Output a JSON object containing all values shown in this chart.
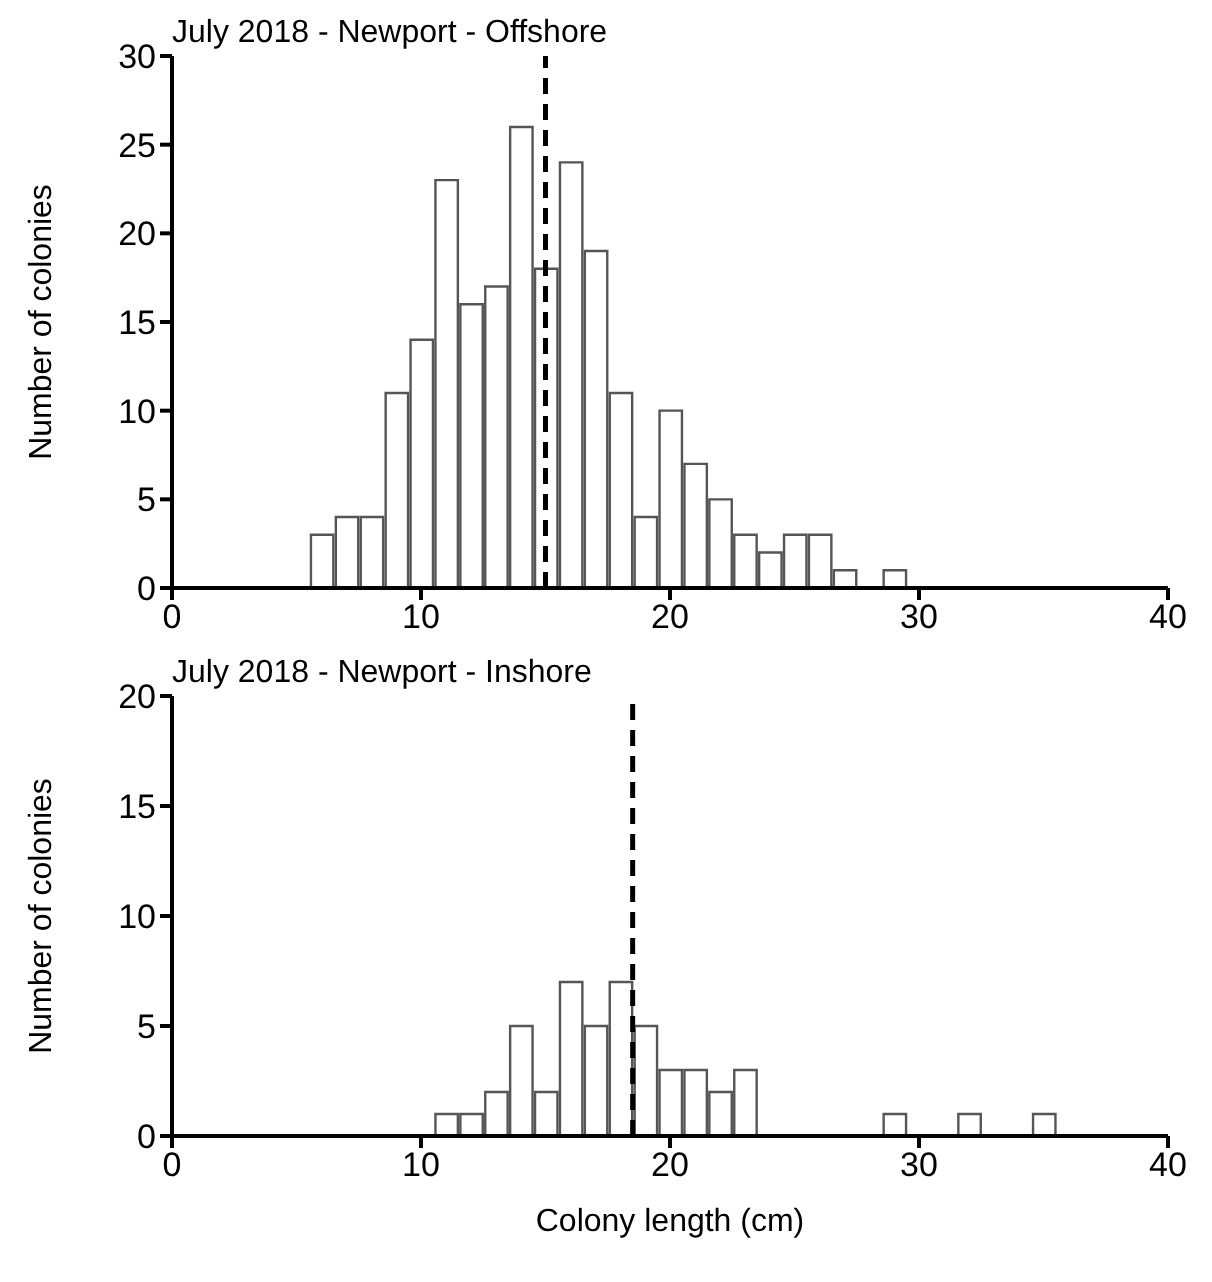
{
  "chart_data": [
    {
      "type": "histogram",
      "title": "July 2018 - Newport - Offshore",
      "ylabel": "Number of colonies",
      "bins": [
        5.5,
        6.5,
        7.5,
        8.5,
        9.5,
        10.5,
        11.5,
        12.5,
        13.5,
        14.5,
        15.5,
        16.5,
        17.5,
        18.5,
        19.5,
        20.5,
        21.5,
        22.5,
        23.5,
        24.5,
        25.5,
        26.5,
        27.5,
        28.5,
        29.5
      ],
      "values": [
        3,
        4,
        4,
        11,
        14,
        23,
        16,
        17,
        26,
        18,
        24,
        19,
        11,
        4,
        10,
        7,
        5,
        3,
        2,
        3,
        3,
        1,
        0,
        1
      ],
      "color": "#ffffff",
      "xlim": [
        0,
        40
      ],
      "xticks": [
        0,
        10,
        20,
        30,
        40
      ],
      "ylim": [
        0,
        30
      ],
      "yticks": [
        0,
        5,
        10,
        15,
        20,
        25,
        30
      ],
      "ref_lines": [
        {
          "axis": "x",
          "value": 15,
          "color": "#000000",
          "line_style": "dashed"
        }
      ]
    },
    {
      "type": "histogram",
      "title": "July 2018 - Newport - Inshore",
      "xlabel": "Colony length (cm)",
      "ylabel": "Number of colonies",
      "bins": [
        10.5,
        11.5,
        12.5,
        13.5,
        14.5,
        15.5,
        16.5,
        17.5,
        18.5,
        19.5,
        20.5,
        21.5,
        22.5,
        23.5,
        24.5,
        25.5,
        26.5,
        27.5,
        28.5,
        29.5,
        30.5,
        31.5,
        32.5,
        33.5,
        34.5,
        35.5
      ],
      "values": [
        1,
        1,
        2,
        5,
        2,
        7,
        5,
        7,
        5,
        3,
        3,
        2,
        3,
        0,
        0,
        0,
        0,
        0,
        1,
        0,
        0,
        1,
        0,
        0,
        1
      ],
      "color": "#ffffff",
      "xlim": [
        0,
        40
      ],
      "xticks": [
        0,
        10,
        20,
        30,
        40
      ],
      "ylim": [
        0,
        20
      ],
      "yticks": [
        0,
        5,
        10,
        15,
        20
      ],
      "ref_lines": [
        {
          "axis": "x",
          "value": 18.5,
          "color": "#000000",
          "line_style": "dashed"
        }
      ]
    }
  ]
}
